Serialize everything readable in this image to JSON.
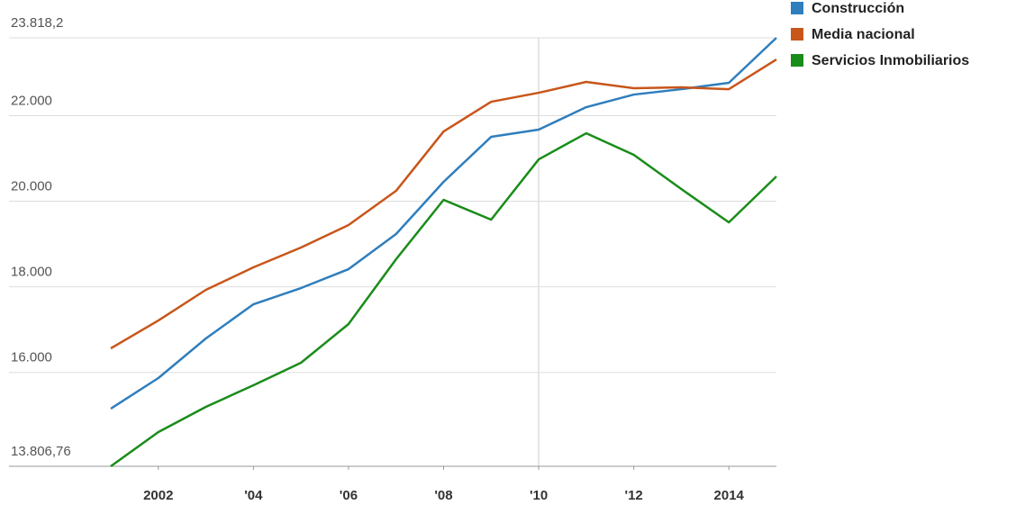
{
  "chart_data": {
    "type": "line",
    "x": [
      2001,
      2002,
      2003,
      2004,
      2005,
      2006,
      2007,
      2008,
      2009,
      2010,
      2011,
      2012,
      2013,
      2014,
      2015
    ],
    "series": [
      {
        "name": "Construcción",
        "color": "#2f7ebd",
        "values": [
          15153,
          15868,
          16793,
          17592,
          17971,
          18412,
          19233,
          20453,
          21504,
          21672,
          22198,
          22492,
          22618,
          22766,
          23818
        ]
      },
      {
        "name": "Media nacional",
        "color": "#c8561a",
        "values": [
          16562,
          17213,
          17929,
          18455,
          18917,
          19443,
          20242,
          21630,
          22324,
          22534,
          22787,
          22640,
          22661,
          22618,
          23313
        ]
      },
      {
        "name": "Servicios Inmobiliarios",
        "color": "#1a8c1a",
        "values": [
          13807,
          14606,
          15195,
          15700,
          16225,
          17130,
          18644,
          20032,
          19569,
          20978,
          21588,
          21083,
          20284,
          19506,
          20579
        ]
      }
    ],
    "xlim": [
      2001,
      2015
    ],
    "xticks": [
      {
        "value": 2002,
        "label": "2002"
      },
      {
        "value": 2004,
        "label": "'04"
      },
      {
        "value": 2006,
        "label": "'06"
      },
      {
        "value": 2008,
        "label": "'08"
      },
      {
        "value": 2010,
        "label": "'10"
      },
      {
        "value": 2012,
        "label": "'12"
      },
      {
        "value": 2014,
        "label": "2014"
      }
    ],
    "ylim": [
      13806.76,
      23818.2
    ],
    "yticks": [
      {
        "value": 13806.76,
        "label": "13.806,76"
      },
      {
        "value": 16000,
        "label": "16.000"
      },
      {
        "value": 18000,
        "label": "18.000"
      },
      {
        "value": 20000,
        "label": "20.000"
      },
      {
        "value": 22000,
        "label": "22.000"
      },
      {
        "value": 23818.2,
        "label": "23.818,2"
      }
    ],
    "grid": true,
    "legend": "top-right"
  }
}
